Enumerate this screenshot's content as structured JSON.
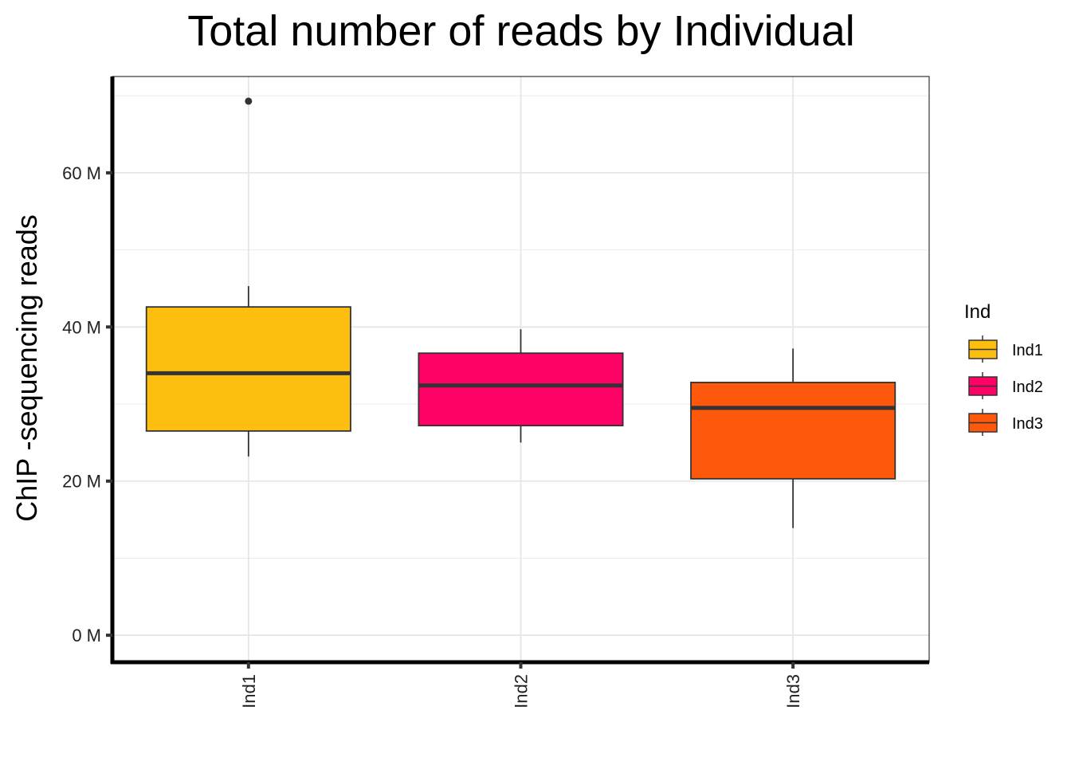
{
  "chart_data": {
    "type": "boxplot",
    "title": "Total number of reads by Individual",
    "xlabel": "",
    "ylabel": "ChIP -sequencing reads",
    "ylim": [
      -3.5,
      72.5
    ],
    "y_ticks": [
      0,
      20,
      40,
      60
    ],
    "y_tick_labels": [
      "0 M",
      "20 M",
      "40 M",
      "60 M"
    ],
    "y_unit": "M reads",
    "categories": [
      "Ind1",
      "Ind2",
      "Ind3"
    ],
    "grid": true,
    "legend": {
      "title": "Ind",
      "position": "right",
      "items": [
        "Ind1",
        "Ind2",
        "Ind3"
      ]
    },
    "series": [
      {
        "name": "Ind1",
        "color": "#FDBE10",
        "whisker_low": 23.2,
        "q1": 26.5,
        "median": 34.0,
        "q3": 42.6,
        "whisker_high": 45.3,
        "outliers": [
          69.3
        ]
      },
      {
        "name": "Ind2",
        "color": "#FF0266",
        "whisker_low": 25.0,
        "q1": 27.2,
        "median": 32.4,
        "q3": 36.6,
        "whisker_high": 39.7,
        "outliers": []
      },
      {
        "name": "Ind3",
        "color": "#FD580B",
        "whisker_low": 13.9,
        "q1": 20.3,
        "median": 29.5,
        "q3": 32.8,
        "whisker_high": 37.2,
        "outliers": []
      }
    ]
  }
}
